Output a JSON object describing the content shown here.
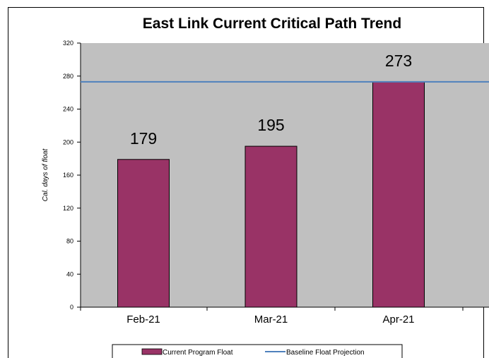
{
  "chart_data": {
    "type": "bar",
    "title": "East Link Current Critical Path Trend",
    "ylabel": "Cal. days of float",
    "xlabel": "",
    "categories": [
      "Feb-21",
      "Mar-21",
      "Apr-21"
    ],
    "ylim": [
      0,
      320
    ],
    "yticks": [
      0,
      40,
      80,
      120,
      160,
      200,
      240,
      280,
      320
    ],
    "series": [
      {
        "name": "Current Program Float",
        "type": "bar",
        "values": [
          179,
          195,
          273
        ],
        "color": "#993366"
      },
      {
        "name": "Baseline Float Projection",
        "type": "line",
        "values": [
          273,
          273,
          273
        ],
        "color": "#4f81bd"
      }
    ],
    "data_labels": [
      "179",
      "195",
      "273"
    ],
    "plot_background": "#c0c0c0",
    "legend_position": "bottom",
    "grid": false
  }
}
